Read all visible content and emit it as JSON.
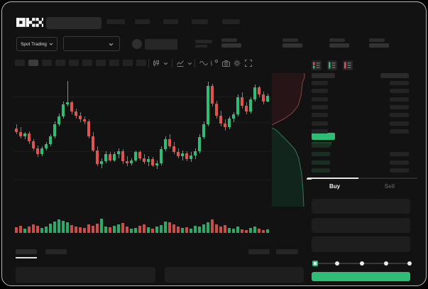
{
  "app": {
    "logo_text": "OKX"
  },
  "topbar": {
    "nav_placeholder_count": 5,
    "stats_placeholder_count": 4
  },
  "market_bar": {
    "market_type_label": "Spot Trading",
    "pair_selector_icon": "chevron-down-icon",
    "account_icon": "avatar-circle-icon"
  },
  "chart_toolbar": {
    "timeframe_pill_count": 10,
    "active_pill_index": 1,
    "icons": [
      "candle-style-icon",
      "chevron-down-icon",
      "indicators-icon",
      "chevron-down-icon",
      "line-tool-icon",
      "draw-tool-icon",
      "snapshot-icon",
      "settings-icon",
      "fullscreen-icon"
    ]
  },
  "chart_data": {
    "type": "candlestick",
    "value_scale": [
      0,
      100
    ],
    "colors": {
      "up": "#2dbd74",
      "down": "#df544f"
    },
    "candles": [
      [
        48,
        52,
        42,
        44
      ],
      [
        44,
        49,
        38,
        40
      ],
      [
        40,
        44,
        37,
        43
      ],
      [
        43,
        45,
        32,
        35
      ],
      [
        35,
        37,
        26,
        28
      ],
      [
        28,
        31,
        19,
        22
      ],
      [
        22,
        30,
        20,
        28
      ],
      [
        28,
        34,
        26,
        32
      ],
      [
        32,
        42,
        30,
        40
      ],
      [
        40,
        55,
        38,
        52
      ],
      [
        52,
        63,
        50,
        60
      ],
      [
        60,
        75,
        58,
        72
      ],
      [
        72,
        96,
        70,
        74
      ],
      [
        74,
        76,
        62,
        65
      ],
      [
        65,
        68,
        58,
        61
      ],
      [
        61,
        64,
        54,
        57
      ],
      [
        57,
        60,
        52,
        55
      ],
      [
        55,
        57,
        38,
        40
      ],
      [
        40,
        44,
        24,
        26
      ],
      [
        26,
        30,
        10,
        12
      ],
      [
        12,
        18,
        8,
        15
      ],
      [
        15,
        25,
        13,
        22
      ],
      [
        22,
        24,
        14,
        16
      ],
      [
        16,
        24,
        14,
        22
      ],
      [
        22,
        28,
        18,
        25
      ],
      [
        25,
        27,
        12,
        15
      ],
      [
        15,
        20,
        10,
        13
      ],
      [
        13,
        18,
        11,
        16
      ],
      [
        16,
        26,
        14,
        24
      ],
      [
        24,
        26,
        16,
        18
      ],
      [
        18,
        22,
        12,
        14
      ],
      [
        14,
        20,
        10,
        17
      ],
      [
        17,
        19,
        9,
        11
      ],
      [
        11,
        16,
        7,
        13
      ],
      [
        13,
        30,
        11,
        27
      ],
      [
        27,
        40,
        25,
        37
      ],
      [
        37,
        42,
        28,
        30
      ],
      [
        30,
        34,
        22,
        24
      ],
      [
        24,
        28,
        18,
        20
      ],
      [
        20,
        26,
        16,
        23
      ],
      [
        23,
        25,
        15,
        17
      ],
      [
        17,
        24,
        14,
        21
      ],
      [
        21,
        28,
        17,
        25
      ],
      [
        25,
        42,
        23,
        39
      ],
      [
        39,
        55,
        37,
        52
      ],
      [
        52,
        95,
        50,
        91
      ],
      [
        91,
        93,
        70,
        73
      ],
      [
        73,
        76,
        58,
        61
      ],
      [
        61,
        66,
        50,
        53
      ],
      [
        53,
        57,
        46,
        49
      ],
      [
        49,
        60,
        47,
        58
      ],
      [
        58,
        64,
        54,
        62
      ],
      [
        62,
        82,
        60,
        79
      ],
      [
        79,
        84,
        68,
        71
      ],
      [
        71,
        74,
        62,
        65
      ],
      [
        65,
        79,
        63,
        77
      ],
      [
        77,
        92,
        75,
        89
      ],
      [
        89,
        91,
        79,
        82
      ],
      [
        82,
        85,
        72,
        75
      ],
      [
        75,
        83,
        74,
        81
      ]
    ],
    "volumes": [
      8,
      10,
      6,
      9,
      12,
      10,
      7,
      9,
      13,
      16,
      19,
      17,
      15,
      11,
      9,
      8,
      7,
      12,
      10,
      13,
      20,
      9,
      8,
      10,
      12,
      14,
      9,
      6,
      7,
      10,
      12,
      8,
      6,
      9,
      11,
      16,
      15,
      12,
      9,
      7,
      8,
      6,
      10,
      9,
      12,
      15,
      19,
      12,
      9,
      11,
      7,
      6,
      9,
      5,
      4,
      7,
      9,
      6,
      4,
      5
    ]
  },
  "depth_chart": {
    "asks_fill": "#261416",
    "asks_line": "#8a4448",
    "bids_fill": "#12251c",
    "bids_line": "#2f7a56"
  },
  "orderbook": {
    "mode_icons": [
      "book-combined-icon",
      "book-bids-icon",
      "book-asks-icon"
    ],
    "ask_row_count": 7,
    "bid_row_count": 4,
    "last_price_color": "#2dbd74"
  },
  "trade_panel": {
    "buy_tab_label": "Buy",
    "sell_tab_label": "Sell",
    "input_box_count": 3,
    "slider_step_count": 5,
    "accent_color": "#2dbd74"
  },
  "bottom_bar": {
    "left_tab_count": 2,
    "right_placeholder_count": 2,
    "panel_count": 2
  }
}
